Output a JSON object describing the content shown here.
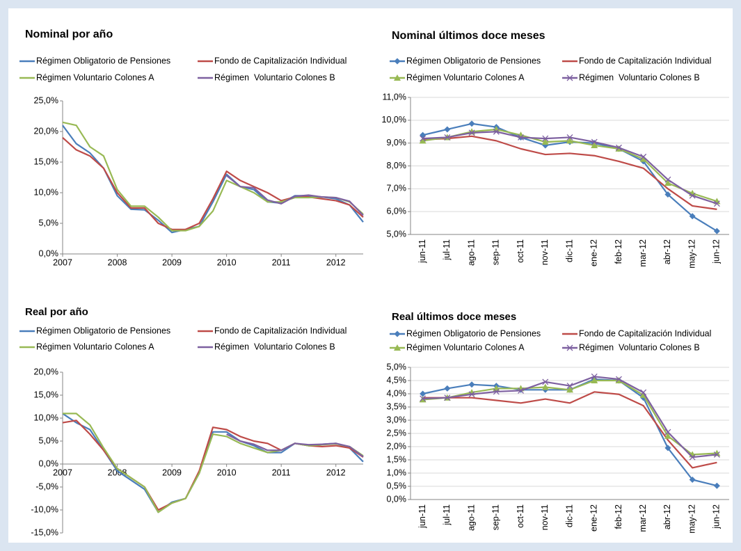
{
  "chart_data": [
    {
      "type": "line",
      "title": "Nominal por año",
      "x": [
        2007,
        2007.25,
        2007.5,
        2007.75,
        2008,
        2008.25,
        2008.5,
        2008.75,
        2009,
        2009.25,
        2009.5,
        2009.75,
        2010,
        2010.25,
        2010.5,
        2010.75,
        2011,
        2011.25,
        2011.5,
        2011.75,
        2012,
        2012.25,
        2012.5
      ],
      "xlim": [
        2007,
        2012.5
      ],
      "xticks": [
        2007,
        2008,
        2009,
        2010,
        2011,
        2012
      ],
      "ylim": [
        0,
        25
      ],
      "yticks": [
        {
          "value": 0,
          "label": "0,0%"
        },
        {
          "value": 5,
          "label": "5,0%"
        },
        {
          "value": 10,
          "label": "10,0%"
        },
        {
          "value": 15,
          "label": "15,0%"
        },
        {
          "value": 20,
          "label": "20,0%"
        },
        {
          "value": 25,
          "label": "25,0%"
        }
      ],
      "grid": false,
      "series": [
        {
          "name": "Régimen Obligatorio de Pensiones",
          "color": "#4a7ebb",
          "values": [
            21,
            18,
            16.5,
            14,
            9.5,
            7.3,
            7.2,
            5.5,
            3.5,
            4,
            4.5,
            8.5,
            13,
            11,
            10.5,
            8.5,
            8.3,
            9.5,
            9.5,
            9.3,
            9,
            8,
            5.2
          ]
        },
        {
          "name": "Fondo de Capitalización Individual",
          "color": "#be4b48",
          "values": [
            19,
            17,
            16,
            14,
            10,
            7.5,
            7.5,
            5,
            4,
            4,
            5,
            9,
            13.5,
            12,
            11,
            10,
            8.7,
            9.3,
            9.3,
            9,
            8.7,
            8,
            6
          ]
        },
        {
          "name": "Régimen Voluntario Colones A",
          "color": "#98b954",
          "values": [
            21.5,
            21,
            17.5,
            16,
            10.5,
            7.8,
            7.8,
            6,
            3.8,
            3.8,
            4.5,
            7,
            12,
            11,
            10,
            8.5,
            8.5,
            9.2,
            9.2,
            9.3,
            9.2,
            8.5,
            6.5
          ]
        },
        {
          "name": "Régimen  Voluntario Colones B",
          "color": "#7d60a0",
          "values": [
            null,
            null,
            null,
            null,
            null,
            null,
            null,
            null,
            null,
            null,
            null,
            null,
            12.8,
            11,
            10.8,
            8.8,
            8.2,
            9.4,
            9.6,
            9.3,
            9.2,
            8.6,
            6.3
          ]
        }
      ]
    },
    {
      "type": "line",
      "title": "Nominal últimos doce meses",
      "categories": [
        "jun-11",
        "jul-11",
        "ago-11",
        "sep-11",
        "oct-11",
        "nov-11",
        "dic-11",
        "ene-12",
        "feb-12",
        "mar-12",
        "abr-12",
        "may-12",
        "jun-12"
      ],
      "ylim": [
        5,
        11
      ],
      "yticks": [
        {
          "value": 5,
          "label": "5,0%"
        },
        {
          "value": 6,
          "label": "6,0%"
        },
        {
          "value": 7,
          "label": "7,0%"
        },
        {
          "value": 8,
          "label": "8,0%"
        },
        {
          "value": 9,
          "label": "9,0%"
        },
        {
          "value": 10,
          "label": "10,0%"
        },
        {
          "value": 11,
          "label": "11,0%"
        }
      ],
      "grid": true,
      "series": [
        {
          "name": "Régimen Obligatorio de Pensiones",
          "color": "#4a7ebb",
          "marker": "diamond",
          "values": [
            9.35,
            9.6,
            9.85,
            9.7,
            9.25,
            8.9,
            9.05,
            9.0,
            8.75,
            8.2,
            6.75,
            5.8,
            5.15
          ]
        },
        {
          "name": "Fondo de Capitalización Individual",
          "color": "#be4b48",
          "values": [
            9.15,
            9.2,
            9.3,
            9.1,
            8.75,
            8.5,
            8.55,
            8.45,
            8.2,
            7.9,
            7.0,
            6.25,
            6.1
          ]
        },
        {
          "name": "Régimen Voluntario Colones A",
          "color": "#98b954",
          "marker": "triangle",
          "values": [
            9.1,
            9.25,
            9.5,
            9.6,
            9.35,
            9.05,
            9.1,
            8.9,
            8.75,
            8.3,
            7.25,
            6.8,
            6.45
          ]
        },
        {
          "name": "Régimen  Voluntario Colones B",
          "color": "#7d60a0",
          "marker": "x",
          "values": [
            9.2,
            9.25,
            9.45,
            9.5,
            9.25,
            9.2,
            9.25,
            9.05,
            8.8,
            8.4,
            7.4,
            6.7,
            6.35
          ]
        }
      ]
    },
    {
      "type": "line",
      "title": "Real por año",
      "x": [
        2007,
        2007.25,
        2007.5,
        2007.75,
        2008,
        2008.25,
        2008.5,
        2008.75,
        2009,
        2009.25,
        2009.5,
        2009.75,
        2010,
        2010.25,
        2010.5,
        2010.75,
        2011,
        2011.25,
        2011.5,
        2011.75,
        2012,
        2012.25,
        2012.5
      ],
      "xlim": [
        2007,
        2012.5
      ],
      "xticks": [
        2007,
        2008,
        2009,
        2010,
        2011,
        2012
      ],
      "ylim": [
        -15,
        20
      ],
      "yticks": [
        {
          "value": -15,
          "label": "-15,0%"
        },
        {
          "value": -10,
          "label": "-10,0%"
        },
        {
          "value": -5,
          "label": "-5,0%"
        },
        {
          "value": 0,
          "label": "0,0%"
        },
        {
          "value": 5,
          "label": "5,0%"
        },
        {
          "value": 10,
          "label": "10,0%"
        },
        {
          "value": 15,
          "label": "15,0%"
        },
        {
          "value": 20,
          "label": "20,0%"
        }
      ],
      "grid": false,
      "series": [
        {
          "name": "Régimen Obligatorio de Pensiones",
          "color": "#4a7ebb",
          "values": [
            11,
            9,
            7.5,
            3,
            -1.5,
            -3.5,
            -5.5,
            -10.5,
            -8.3,
            -7.5,
            -2,
            7,
            7,
            5,
            4,
            2.5,
            2.5,
            4.5,
            4,
            4.3,
            4.5,
            3.5,
            0.5
          ]
        },
        {
          "name": "Fondo de Capitalización Individual",
          "color": "#be4b48",
          "values": [
            9,
            9.5,
            6.5,
            3,
            -1,
            -3,
            -5,
            -10,
            -8.5,
            -7.5,
            -1.5,
            8,
            7.5,
            6,
            5,
            4.5,
            3,
            4.5,
            4,
            3.8,
            4,
            3.5,
            1.5
          ]
        },
        {
          "name": "Régimen Voluntario Colones A",
          "color": "#98b954",
          "values": [
            11,
            11,
            8.5,
            3.5,
            -1,
            -3,
            -5,
            -10.5,
            -8.5,
            -7.5,
            -2,
            6.5,
            6,
            4.5,
            3.5,
            2.5,
            3,
            4.5,
            4,
            4.2,
            4.4,
            3.8,
            1.8
          ]
        },
        {
          "name": "Régimen  Voluntario Colones B",
          "color": "#7d60a0",
          "values": [
            null,
            null,
            null,
            null,
            null,
            null,
            null,
            null,
            null,
            null,
            null,
            null,
            6.5,
            5,
            4.3,
            3,
            3,
            4.5,
            4.2,
            4.3,
            4.5,
            3.8,
            1.6
          ]
        }
      ]
    },
    {
      "type": "line",
      "title": "Real últimos doce meses",
      "categories": [
        "jun-11",
        "jul-11",
        "ago-11",
        "sep-11",
        "oct-11",
        "nov-11",
        "dic-11",
        "ene-12",
        "feb-12",
        "mar-12",
        "abr-12",
        "may-12",
        "jun-12"
      ],
      "ylim": [
        0,
        5
      ],
      "yticks": [
        {
          "value": 0,
          "label": "0,0%"
        },
        {
          "value": 0.5,
          "label": "0,5%"
        },
        {
          "value": 1,
          "label": "1,0%"
        },
        {
          "value": 1.5,
          "label": "1,5%"
        },
        {
          "value": 2,
          "label": "2,0%"
        },
        {
          "value": 2.5,
          "label": "2,5%"
        },
        {
          "value": 3,
          "label": "3,0%"
        },
        {
          "value": 3.5,
          "label": "3,5%"
        },
        {
          "value": 4,
          "label": "4,0%"
        },
        {
          "value": 4.5,
          "label": "4,5%"
        },
        {
          "value": 5,
          "label": "5,0%"
        }
      ],
      "grid": true,
      "series": [
        {
          "name": "Régimen Obligatorio de Pensiones",
          "color": "#4a7ebb",
          "marker": "diamond",
          "values": [
            4.0,
            4.2,
            4.35,
            4.3,
            4.15,
            4.15,
            4.15,
            4.55,
            4.5,
            3.85,
            1.95,
            0.75,
            0.52
          ]
        },
        {
          "name": "Fondo de Capitalización Individual",
          "color": "#be4b48",
          "values": [
            3.85,
            3.85,
            3.85,
            3.75,
            3.65,
            3.8,
            3.65,
            4.07,
            3.98,
            3.55,
            2.25,
            1.2,
            1.4
          ]
        },
        {
          "name": "Régimen Voluntario Colones A",
          "color": "#98b954",
          "marker": "triangle",
          "values": [
            3.78,
            3.85,
            4.05,
            4.2,
            4.2,
            4.25,
            4.15,
            4.5,
            4.5,
            3.95,
            2.4,
            1.7,
            1.75
          ]
        },
        {
          "name": "Régimen  Voluntario Colones B",
          "color": "#7d60a0",
          "marker": "x",
          "values": [
            3.82,
            3.85,
            3.98,
            4.08,
            4.12,
            4.45,
            4.3,
            4.65,
            4.55,
            4.05,
            2.55,
            1.6,
            1.7
          ]
        }
      ]
    }
  ]
}
